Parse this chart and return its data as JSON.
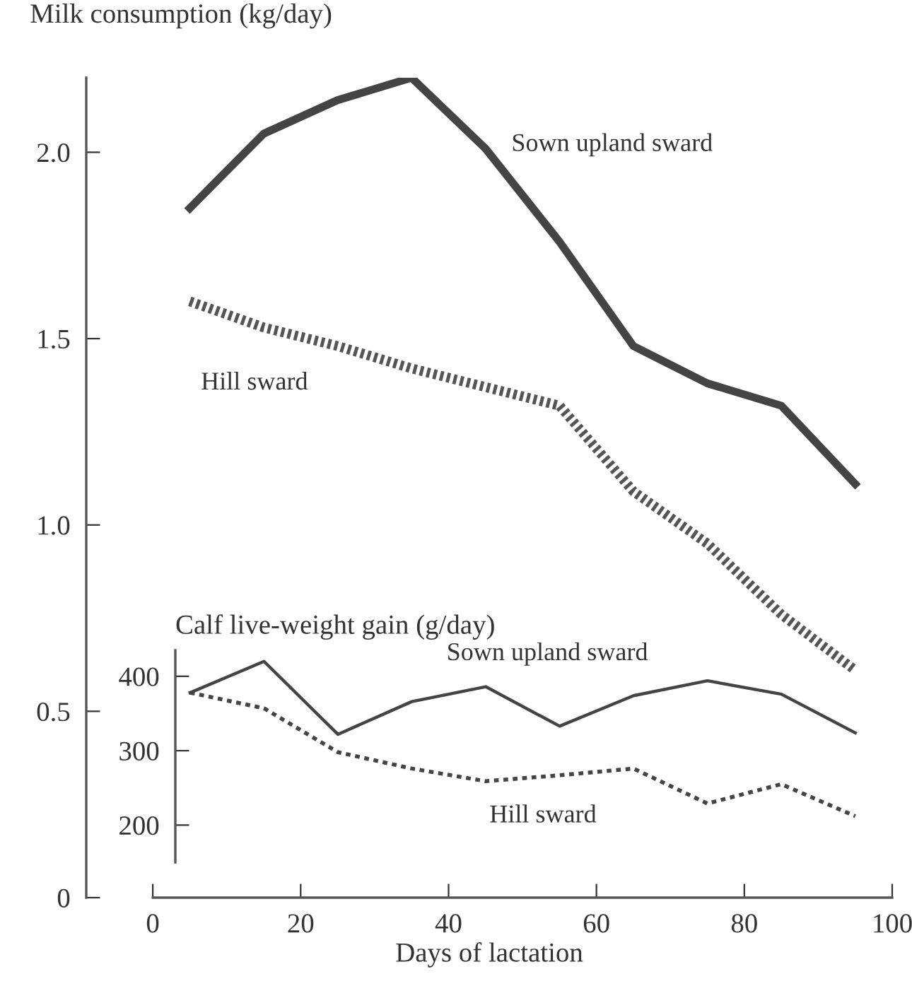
{
  "chart_data": [
    {
      "type": "line",
      "ylabel": "Milk consumption (kg/day)",
      "xlabel": "Days of lactation",
      "x": [
        5,
        15,
        25,
        35,
        45,
        55,
        65,
        75,
        85,
        95
      ],
      "series": [
        {
          "name": "Sown upland sward",
          "color": "#444444",
          "line_style": "solid",
          "values": [
            1.85,
            2.05,
            2.14,
            2.2,
            2.01,
            1.76,
            1.48,
            1.38,
            1.32,
            1.11
          ]
        },
        {
          "name": "Hill sward",
          "color": "#555555",
          "line_style": "dotted",
          "values": [
            1.6,
            1.53,
            1.48,
            1.42,
            1.37,
            1.32,
            1.09,
            0.95,
            0.76,
            0.61
          ]
        }
      ],
      "xlim": [
        -9,
        100
      ],
      "ylim": [
        0,
        2.2
      ],
      "xticks": [
        0,
        20,
        40,
        60,
        80,
        100
      ],
      "yticks": [
        0,
        0.5,
        {
          "value": 1,
          "label": "1.0"
        },
        1.5,
        {
          "value": 2,
          "label": "2.0"
        }
      ],
      "grid": false,
      "legend": false
    },
    {
      "type": "line",
      "ylabel": "Calf live-weight gain (g/day)",
      "categories": [
        null,
        null,
        null,
        null,
        null,
        null,
        null,
        null,
        null,
        null
      ],
      "series": [
        {
          "name": "Sown upland sward",
          "color": "#444444",
          "line_style": "solid",
          "values": [
            378,
            420,
            322,
            366,
            386,
            333,
            374,
            394,
            376,
            324
          ]
        },
        {
          "name": "Hill sward",
          "color": "#444444",
          "line_style": "dotted",
          "values": [
            378,
            357,
            298,
            276,
            259,
            267,
            276,
            229,
            255,
            212
          ]
        }
      ],
      "ylim": [
        150,
        435
      ],
      "yticks": [
        200,
        300,
        400
      ],
      "tick_labels": "y",
      "grid": false,
      "legend": false
    }
  ]
}
